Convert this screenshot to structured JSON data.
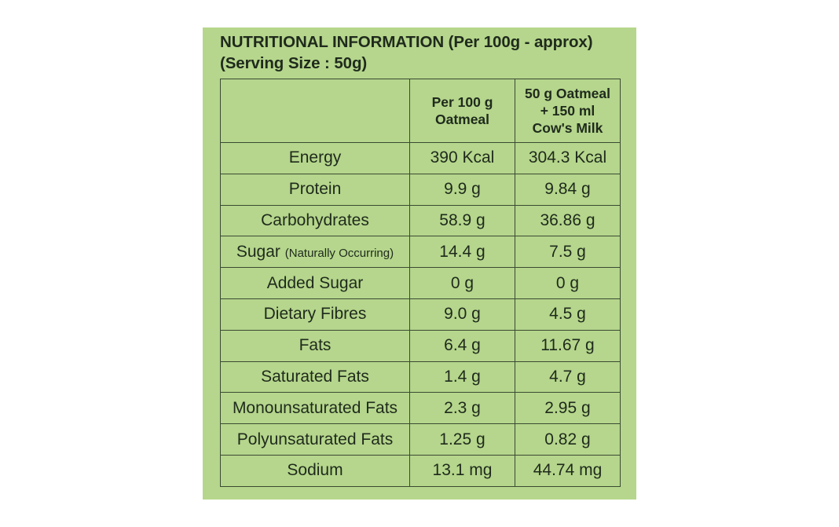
{
  "title": {
    "line1": "NUTRITIONAL INFORMATION (Per 100g - approx)",
    "line2": "(Serving Size : 50g)"
  },
  "columns": {
    "nutrient": "",
    "per100_line1": "Per 100 g",
    "per100_line2": "Oatmeal",
    "serving_line1": "50 g Oatmeal",
    "serving_line2": "+ 150 ml",
    "serving_line3": "Cow's Milk"
  },
  "rows": [
    {
      "name": "Energy",
      "note": "",
      "per100": "390 Kcal",
      "serving": "304.3 Kcal"
    },
    {
      "name": "Protein",
      "note": "",
      "per100": "9.9 g",
      "serving": "9.84 g"
    },
    {
      "name": "Carbohydrates",
      "note": "",
      "per100": "58.9 g",
      "serving": "36.86 g"
    },
    {
      "name": "Sugar",
      "note": "(Naturally Occurring)",
      "per100": "14.4 g",
      "serving": "7.5 g"
    },
    {
      "name": "Added Sugar",
      "note": "",
      "per100": "0 g",
      "serving": "0 g"
    },
    {
      "name": "Dietary Fibres",
      "note": "",
      "per100": "9.0 g",
      "serving": "4.5 g"
    },
    {
      "name": "Fats",
      "note": "",
      "per100": "6.4 g",
      "serving": "11.67 g"
    },
    {
      "name": "Saturated Fats",
      "note": "",
      "per100": "1.4 g",
      "serving": "4.7 g"
    },
    {
      "name": "Monounsaturated Fats",
      "note": "",
      "per100": "2.3 g",
      "serving": "2.95 g"
    },
    {
      "name": "Polyunsaturated Fats",
      "note": "",
      "per100": "1.25 g",
      "serving": "0.82 g"
    },
    {
      "name": "Sodium",
      "note": "",
      "per100": "13.1 mg",
      "serving": "44.74 mg"
    }
  ],
  "colors": {
    "panel_background": "#b5d68c",
    "border": "#3b4a33",
    "text": "#1f2a1c"
  }
}
